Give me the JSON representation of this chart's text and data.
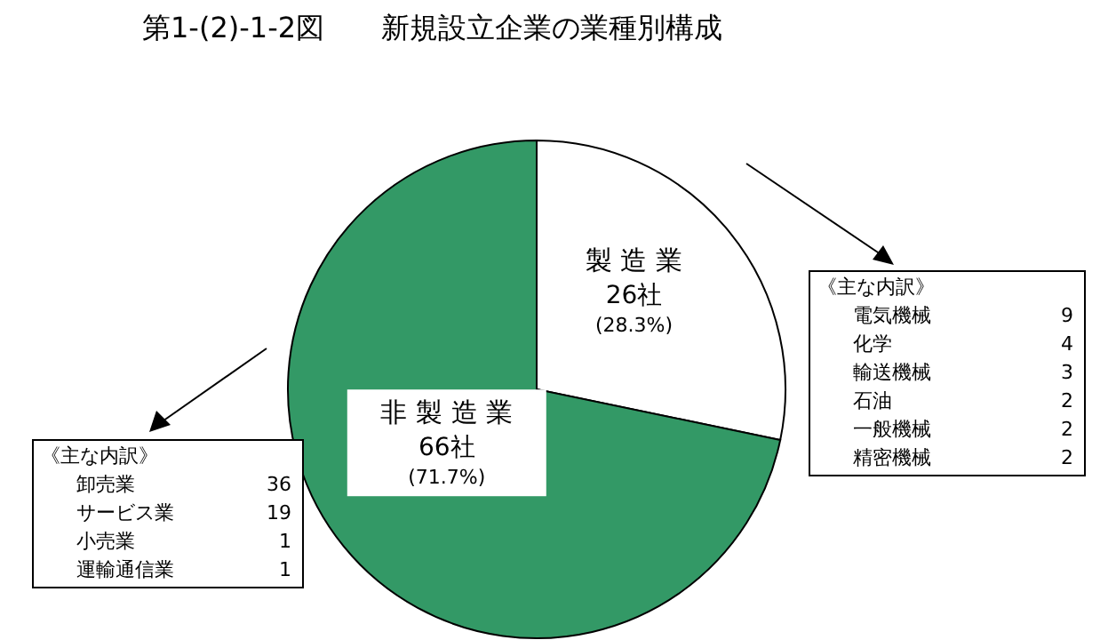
{
  "chart_data": {
    "type": "pie",
    "title": "第1-(2)-1-2図　　新規設立企業の業種別構成",
    "categories": [
      "製 造 業",
      "非 製 造 業"
    ],
    "values": [
      26,
      66
    ],
    "value_labels": [
      "26社\n(28.3%)",
      "66社\n(71.7%)"
    ],
    "colors": [
      "#ffffff",
      "#339966"
    ],
    "legend": false,
    "annotations": [
      {
        "text": "《主な内訳》",
        "x": "製 造 業"
      },
      {
        "text": "電気機械",
        "x": "製 造 業"
      },
      {
        "text": "9",
        "x": "製 造 業"
      },
      {
        "text": "化学",
        "x": "製 造 業"
      },
      {
        "text": "4",
        "x": "製 造 業"
      },
      {
        "text": "輸送機械",
        "x": "製 造 業"
      },
      {
        "text": "3",
        "x": "製 造 業"
      },
      {
        "text": "石油",
        "x": "製 造 業"
      },
      {
        "text": "2",
        "x": "製 造 業"
      },
      {
        "text": "一般機械",
        "x": "製 造 業"
      },
      {
        "text": "2",
        "x": "製 造 業"
      },
      {
        "text": "精密機械",
        "x": "製 造 業"
      },
      {
        "text": "2",
        "x": "製 造 業"
      },
      {
        "text": "《主な内訳》",
        "x": "非 製 造 業"
      },
      {
        "text": "卸売業",
        "x": "非 製 造 業"
      },
      {
        "text": "36",
        "x": "非 製 造 業"
      },
      {
        "text": "サービス業",
        "x": "非 製 造 業"
      },
      {
        "text": "19",
        "x": "非 製 造 業"
      },
      {
        "text": "小売業",
        "x": "非 製 造 業"
      },
      {
        "text": "1",
        "x": "非 製 造 業"
      },
      {
        "text": "運輸通信業",
        "x": "非 製 造 業"
      },
      {
        "text": "1",
        "x": "非 製 造 業"
      }
    ]
  }
}
